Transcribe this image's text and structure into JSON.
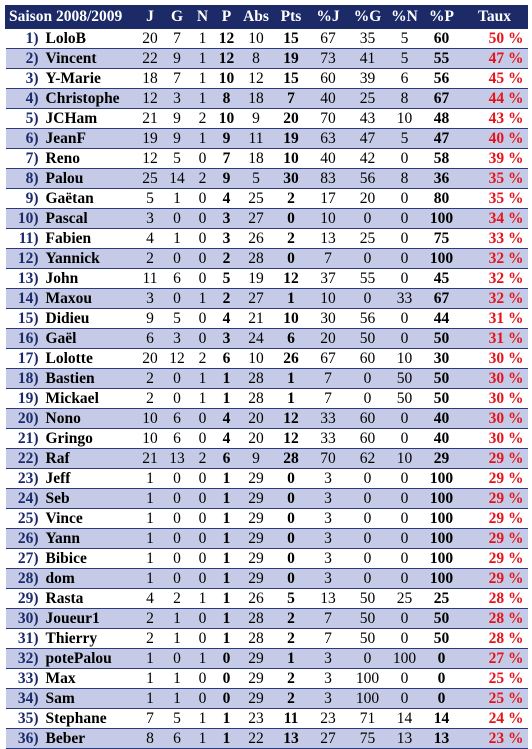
{
  "header": [
    "Saison 2008/2009",
    "J",
    "G",
    "N",
    "P",
    "Abs",
    "Pts",
    "%J",
    "%G",
    "%N",
    "%P",
    "Taux"
  ],
  "rows": [
    [
      "1)",
      "LoloB",
      "20",
      "7",
      "1",
      "12",
      "10",
      "15",
      "67",
      "35",
      "5",
      "60",
      "50 %"
    ],
    [
      "2)",
      "Vincent",
      "22",
      "9",
      "1",
      "12",
      "8",
      "19",
      "73",
      "41",
      "5",
      "55",
      "47 %"
    ],
    [
      "3)",
      "Y-Marie",
      "18",
      "7",
      "1",
      "10",
      "12",
      "15",
      "60",
      "39",
      "6",
      "56",
      "45 %"
    ],
    [
      "4)",
      "Christophe",
      "12",
      "3",
      "1",
      "8",
      "18",
      "7",
      "40",
      "25",
      "8",
      "67",
      "44 %"
    ],
    [
      "5)",
      "JCHam",
      "21",
      "9",
      "2",
      "10",
      "9",
      "20",
      "70",
      "43",
      "10",
      "48",
      "43 %"
    ],
    [
      "6)",
      "JeanF",
      "19",
      "9",
      "1",
      "9",
      "11",
      "19",
      "63",
      "47",
      "5",
      "47",
      "40 %"
    ],
    [
      "7)",
      "Reno",
      "12",
      "5",
      "0",
      "7",
      "18",
      "10",
      "40",
      "42",
      "0",
      "58",
      "39 %"
    ],
    [
      "8)",
      "Palou",
      "25",
      "14",
      "2",
      "9",
      "5",
      "30",
      "83",
      "56",
      "8",
      "36",
      "35 %"
    ],
    [
      "9)",
      "Gaëtan",
      "5",
      "1",
      "0",
      "4",
      "25",
      "2",
      "17",
      "20",
      "0",
      "80",
      "35 %"
    ],
    [
      "10)",
      "Pascal",
      "3",
      "0",
      "0",
      "3",
      "27",
      "0",
      "10",
      "0",
      "0",
      "100",
      "34 %"
    ],
    [
      "11)",
      "Fabien",
      "4",
      "1",
      "0",
      "3",
      "26",
      "2",
      "13",
      "25",
      "0",
      "75",
      "33 %"
    ],
    [
      "12)",
      "Yannick",
      "2",
      "0",
      "0",
      "2",
      "28",
      "0",
      "7",
      "0",
      "0",
      "100",
      "32 %"
    ],
    [
      "13)",
      "John",
      "11",
      "6",
      "0",
      "5",
      "19",
      "12",
      "37",
      "55",
      "0",
      "45",
      "32 %"
    ],
    [
      "14)",
      "Maxou",
      "3",
      "0",
      "1",
      "2",
      "27",
      "1",
      "10",
      "0",
      "33",
      "67",
      "32 %"
    ],
    [
      "15)",
      "Didieu",
      "9",
      "5",
      "0",
      "4",
      "21",
      "10",
      "30",
      "56",
      "0",
      "44",
      "31 %"
    ],
    [
      "16)",
      "Gaël",
      "6",
      "3",
      "0",
      "3",
      "24",
      "6",
      "20",
      "50",
      "0",
      "50",
      "31 %"
    ],
    [
      "17)",
      "Lolotte",
      "20",
      "12",
      "2",
      "6",
      "10",
      "26",
      "67",
      "60",
      "10",
      "30",
      "30 %"
    ],
    [
      "18)",
      "Bastien",
      "2",
      "0",
      "1",
      "1",
      "28",
      "1",
      "7",
      "0",
      "50",
      "50",
      "30 %"
    ],
    [
      "19)",
      "Mickael",
      "2",
      "0",
      "1",
      "1",
      "28",
      "1",
      "7",
      "0",
      "50",
      "50",
      "30 %"
    ],
    [
      "20)",
      "Nono",
      "10",
      "6",
      "0",
      "4",
      "20",
      "12",
      "33",
      "60",
      "0",
      "40",
      "30 %"
    ],
    [
      "21)",
      "Gringo",
      "10",
      "6",
      "0",
      "4",
      "20",
      "12",
      "33",
      "60",
      "0",
      "40",
      "30 %"
    ],
    [
      "22)",
      "Raf",
      "21",
      "13",
      "2",
      "6",
      "9",
      "28",
      "70",
      "62",
      "10",
      "29",
      "29 %"
    ],
    [
      "23)",
      "Jeff",
      "1",
      "0",
      "0",
      "1",
      "29",
      "0",
      "3",
      "0",
      "0",
      "100",
      "29 %"
    ],
    [
      "24)",
      "Seb",
      "1",
      "0",
      "0",
      "1",
      "29",
      "0",
      "3",
      "0",
      "0",
      "100",
      "29 %"
    ],
    [
      "25)",
      "Vince",
      "1",
      "0",
      "0",
      "1",
      "29",
      "0",
      "3",
      "0",
      "0",
      "100",
      "29 %"
    ],
    [
      "26)",
      "Yann",
      "1",
      "0",
      "0",
      "1",
      "29",
      "0",
      "3",
      "0",
      "0",
      "100",
      "29 %"
    ],
    [
      "27)",
      "Bibice",
      "1",
      "0",
      "0",
      "1",
      "29",
      "0",
      "3",
      "0",
      "0",
      "100",
      "29 %"
    ],
    [
      "28)",
      "dom",
      "1",
      "0",
      "0",
      "1",
      "29",
      "0",
      "3",
      "0",
      "0",
      "100",
      "29 %"
    ],
    [
      "29)",
      "Rasta",
      "4",
      "2",
      "1",
      "1",
      "26",
      "5",
      "13",
      "50",
      "25",
      "25",
      "28 %"
    ],
    [
      "30)",
      "Joueur1",
      "2",
      "1",
      "0",
      "1",
      "28",
      "2",
      "7",
      "50",
      "0",
      "50",
      "28 %"
    ],
    [
      "31)",
      "Thierry",
      "2",
      "1",
      "0",
      "1",
      "28",
      "2",
      "7",
      "50",
      "0",
      "50",
      "28 %"
    ],
    [
      "32)",
      "potePalou",
      "1",
      "0",
      "1",
      "0",
      "29",
      "1",
      "3",
      "0",
      "100",
      "0",
      "27 %"
    ],
    [
      "33)",
      "Max",
      "1",
      "1",
      "0",
      "0",
      "29",
      "2",
      "3",
      "100",
      "0",
      "0",
      "25 %"
    ],
    [
      "34)",
      "Sam",
      "1",
      "1",
      "0",
      "0",
      "29",
      "2",
      "3",
      "100",
      "0",
      "0",
      "25 %"
    ],
    [
      "35)",
      "Stephane",
      "7",
      "5",
      "1",
      "1",
      "23",
      "11",
      "23",
      "71",
      "14",
      "14",
      "24 %"
    ],
    [
      "36)",
      "Beber",
      "8",
      "6",
      "1",
      "1",
      "22",
      "13",
      "27",
      "75",
      "13",
      "13",
      "23 %"
    ]
  ],
  "colors": {
    "header_bg": "#1c2a68",
    "header_text": "#ffffff",
    "row_alt_bg": "#c5cbe6",
    "rank_text": "#1b2a6b",
    "taux_text": "#e8121a"
  }
}
